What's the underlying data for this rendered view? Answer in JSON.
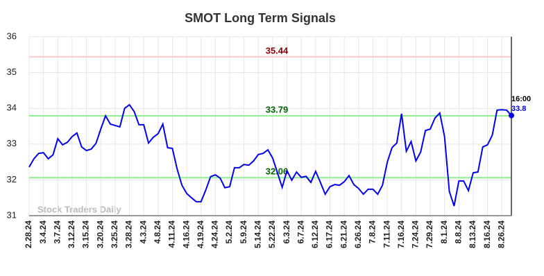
{
  "chart_data": {
    "type": "line",
    "title": "SMOT Long Term Signals",
    "categories": [
      "2.28.24",
      null,
      null,
      "3.4.24",
      null,
      null,
      "3.7.24",
      null,
      null,
      "3.12.24",
      null,
      null,
      "3.15.24",
      null,
      null,
      "3.20.24",
      null,
      null,
      "3.25.24",
      null,
      null,
      "3.28.24",
      null,
      null,
      "4.3.24",
      null,
      null,
      "4.8.24",
      null,
      null,
      "4.11.24",
      null,
      null,
      "4.16.24",
      null,
      null,
      "4.19.24",
      null,
      null,
      "4.24.24",
      null,
      null,
      "5.2.24",
      null,
      null,
      "5.9.24",
      null,
      null,
      "5.14.24",
      null,
      null,
      "5.22.24",
      null,
      null,
      "6.3.24",
      null,
      null,
      "6.7.24",
      null,
      null,
      "6.12.24",
      null,
      null,
      "6.17.24",
      null,
      null,
      "6.21.24",
      null,
      null,
      "6.26.24",
      null,
      null,
      "7.8.24",
      null,
      null,
      "7.11.24",
      null,
      null,
      "7.16.24",
      null,
      null,
      "7.24.24",
      null,
      null,
      "7.29.24",
      null,
      null,
      "8.1.24",
      null,
      null,
      "8.8.24",
      null,
      null,
      "8.13.24",
      null,
      null,
      "8.16.24",
      null,
      null,
      "8.26.24",
      null,
      null
    ],
    "series": [
      {
        "color": "#0000ee",
        "values": [
          32.36,
          32.59,
          32.74,
          32.76,
          32.59,
          32.7,
          33.15,
          32.98,
          33.05,
          33.21,
          33.31,
          32.92,
          32.82,
          32.86,
          33.02,
          33.42,
          33.79,
          33.56,
          33.52,
          33.48,
          34.0,
          34.1,
          33.91,
          33.54,
          33.54,
          33.03,
          33.19,
          33.29,
          33.56,
          32.9,
          32.88,
          32.3,
          31.85,
          31.62,
          31.5,
          31.39,
          31.39,
          31.72,
          32.09,
          32.14,
          32.05,
          31.78,
          31.81,
          32.34,
          32.34,
          32.43,
          32.41,
          32.53,
          32.71,
          32.74,
          32.84,
          32.61,
          32.2,
          31.79,
          32.26,
          31.99,
          32.22,
          32.07,
          32.1,
          31.93,
          32.24,
          31.93,
          31.6,
          31.81,
          31.87,
          31.85,
          31.95,
          32.12,
          31.87,
          31.76,
          31.6,
          31.74,
          31.74,
          31.6,
          31.85,
          32.49,
          32.9,
          33.03,
          33.85,
          32.8,
          33.07,
          32.53,
          32.78,
          33.38,
          33.42,
          33.73,
          33.87,
          33.21,
          31.68,
          31.27,
          31.97,
          31.97,
          31.7,
          32.2,
          32.22,
          32.92,
          32.98,
          33.25,
          33.95,
          33.96,
          33.95,
          33.8
        ]
      }
    ],
    "levels": [
      {
        "value": 35.44,
        "color": "#ffcccc",
        "label_color": "#8b0000"
      },
      {
        "value": 33.79,
        "color": "#90ee90",
        "label_color": "#006400"
      },
      {
        "value": 32.06,
        "color": "#90ee90",
        "label_color": "#006400"
      }
    ],
    "time_label": "16:00",
    "watermark": "Stock Traders Daily",
    "ylim": [
      31,
      36
    ],
    "yticks": [
      31,
      32,
      33,
      34,
      35,
      36
    ],
    "grid": true
  }
}
